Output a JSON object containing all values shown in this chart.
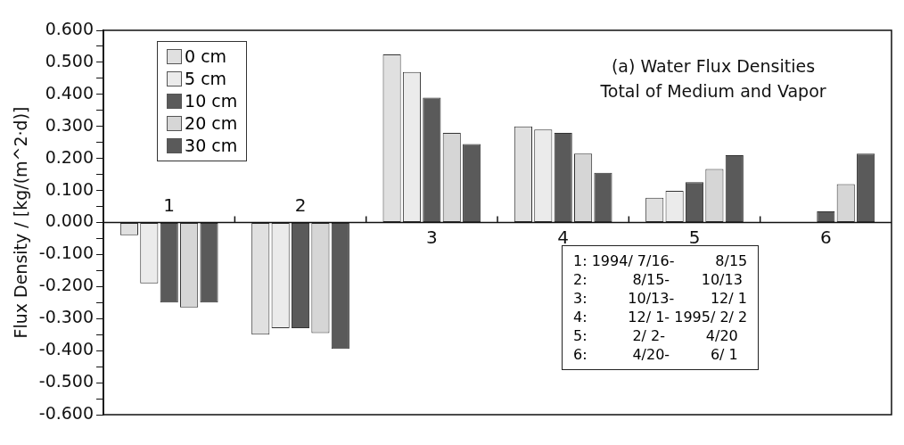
{
  "chart_data": {
    "type": "bar",
    "title": "(a) Water Flux Densities",
    "subtitle": "Total of Medium and Vapor",
    "ylabel": "Flux Density / [kg/(m^2·d)]",
    "categories": [
      "1",
      "2",
      "3",
      "4",
      "5",
      "6"
    ],
    "series": [
      {
        "name": "0 cm",
        "color": "#e0e0e0",
        "values": [
          -0.04,
          -0.35,
          0.525,
          0.3,
          0.077,
          0
        ]
      },
      {
        "name": "5 cm",
        "color": "#ebebeb",
        "values": [
          -0.19,
          -0.33,
          0.47,
          0.29,
          0.099,
          0
        ]
      },
      {
        "name": "10 cm",
        "color": "#5a5a5a",
        "values": [
          -0.25,
          -0.33,
          0.39,
          0.28,
          0.126,
          0.035
        ]
      },
      {
        "name": "20 cm",
        "color": "#d6d6d6",
        "values": [
          -0.265,
          -0.345,
          0.28,
          0.215,
          0.167,
          0.12
        ]
      },
      {
        "name": "30 cm",
        "color": "#5a5a5a",
        "values": [
          -0.25,
          -0.395,
          0.245,
          0.155,
          0.21,
          0.215
        ]
      }
    ],
    "ylim": [
      -0.6,
      0.6
    ],
    "yticks": [
      {
        "value": -0.6,
        "label": "-0.600"
      },
      {
        "value": -0.55,
        "label": null
      },
      {
        "value": -0.5,
        "label": "-0.500"
      },
      {
        "value": -0.45,
        "label": null
      },
      {
        "value": -0.4,
        "label": "-0.400"
      },
      {
        "value": -0.35,
        "label": null
      },
      {
        "value": -0.3,
        "label": "-0.300"
      },
      {
        "value": -0.25,
        "label": null
      },
      {
        "value": -0.2,
        "label": "-0.200"
      },
      {
        "value": -0.15,
        "label": null
      },
      {
        "value": -0.1,
        "label": "-0.100"
      },
      {
        "value": -0.05,
        "label": null
      },
      {
        "value": 0,
        "label": "0.000"
      },
      {
        "value": 0.05,
        "label": null
      },
      {
        "value": 0.1,
        "label": "0.100"
      },
      {
        "value": 0.15,
        "label": null
      },
      {
        "value": 0.2,
        "label": "0.200"
      },
      {
        "value": 0.25,
        "label": null
      },
      {
        "value": 0.3,
        "label": "0.300"
      },
      {
        "value": 0.35,
        "label": null
      },
      {
        "value": 0.4,
        "label": "0.400"
      },
      {
        "value": 0.45,
        "label": null
      },
      {
        "value": 0.5,
        "label": "0.500"
      },
      {
        "value": 0.55,
        "label": null
      },
      {
        "value": 0.6,
        "label": "0.600"
      }
    ],
    "legend": "top left",
    "grid": false,
    "annotations": [
      "1: 1994/ 7/16-         8/15",
      "2:          8/15-       10/13",
      "3:         10/13-        12/ 1",
      "4:         12/ 1- 1995/ 2/ 2",
      "5:          2/ 2-         4/20",
      "6:          4/20-         6/ 1"
    ]
  }
}
